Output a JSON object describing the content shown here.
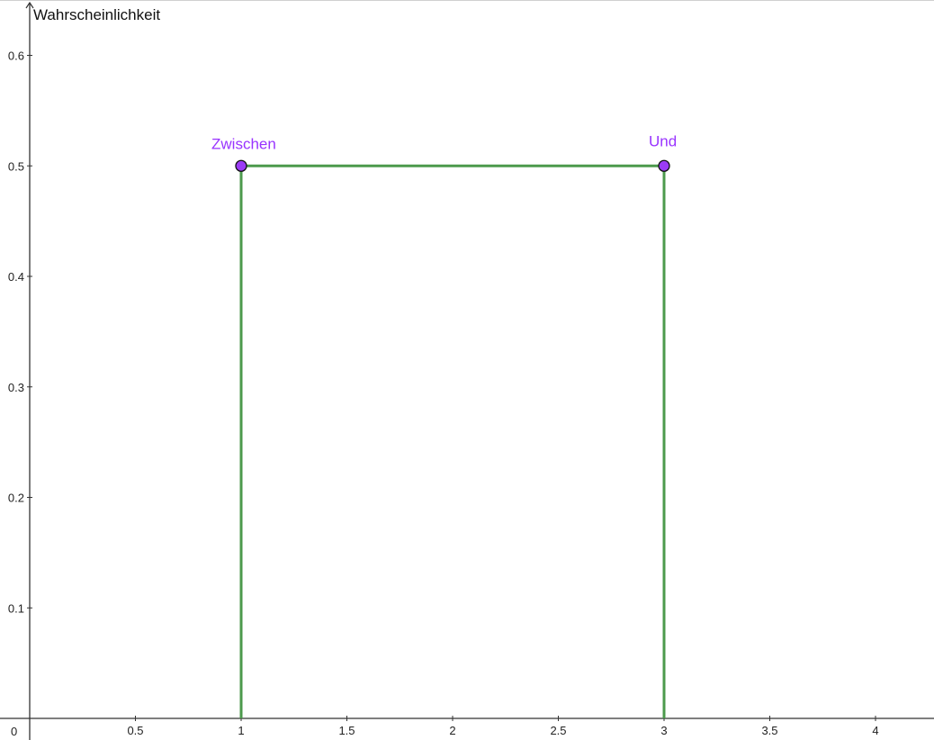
{
  "chart_data": {
    "type": "line",
    "title": "",
    "xlabel": "",
    "ylabel": "Wahrscheinlichkeit",
    "xlim": [
      0,
      4.3
    ],
    "ylim": [
      0,
      0.64
    ],
    "grid": false,
    "x_ticks": [
      "0.5",
      "1",
      "1.5",
      "2",
      "2.5",
      "3",
      "3.5",
      "4"
    ],
    "y_ticks": [
      "0.1",
      "0.2",
      "0.3",
      "0.4",
      "0.5",
      "0.6"
    ],
    "origin_label": "0",
    "series": [
      {
        "color": "#4c9a4c",
        "points": [
          [
            1,
            0
          ],
          [
            1,
            0.5
          ],
          [
            3,
            0.5
          ],
          [
            3,
            0
          ]
        ]
      }
    ],
    "points": [
      {
        "name": "Zwischen",
        "x": 1,
        "y": 0.5
      },
      {
        "name": "Und",
        "x": 3,
        "y": 0.5
      }
    ],
    "point_color": "#9b3cf5",
    "label_color": "#9933ff"
  }
}
